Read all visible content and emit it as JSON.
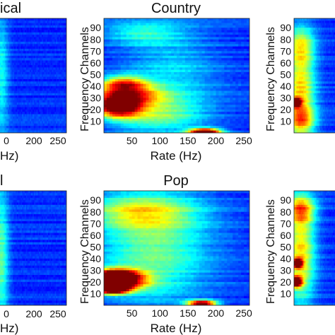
{
  "figure": {
    "panels": [
      {
        "id": "classical",
        "title": "ical",
        "xlabel": "Hz)",
        "ylabel": "",
        "x_ticks": [
          200,
          250
        ],
        "x_first_tick_text": "0",
        "y_ticks": [],
        "base_color": "#2f3aa6"
      },
      {
        "id": "country",
        "title": "Country",
        "xlabel": "Rate (Hz)",
        "ylabel": "Frequency Channels",
        "x_ticks": [
          50,
          100,
          150,
          200,
          250
        ],
        "y_ticks": [
          10,
          20,
          30,
          40,
          50,
          60,
          70,
          80,
          90
        ],
        "base_color": "#2e39a8"
      },
      {
        "id": "right-top",
        "title": "",
        "xlabel": "",
        "ylabel": "Frequency Channels",
        "x_ticks": [],
        "y_ticks": [
          10,
          20,
          30,
          40,
          50,
          60,
          70,
          80,
          90
        ],
        "base_color": "#2e39a8"
      },
      {
        "id": "bottom-left",
        "title": "l",
        "xlabel": "Hz)",
        "ylabel": "",
        "x_ticks": [
          200,
          250
        ],
        "x_first_tick_text": "0",
        "y_ticks": [],
        "base_color": "#2f3aa6"
      },
      {
        "id": "pop",
        "title": "Pop",
        "xlabel": "Rate (Hz)",
        "ylabel": "Frequency Channels",
        "x_ticks": [
          50,
          100,
          150,
          200,
          250
        ],
        "y_ticks": [
          10,
          20,
          30,
          40,
          50,
          60,
          70,
          80,
          90
        ],
        "base_color": "#2e39a8"
      },
      {
        "id": "right-bottom",
        "title": "",
        "xlabel": "",
        "ylabel": "Frequency Channels",
        "x_ticks": [],
        "y_ticks": [
          10,
          20,
          30,
          40,
          50,
          60,
          70,
          80,
          90
        ],
        "base_color": "#2e39a8"
      }
    ]
  },
  "chart_data": [
    {
      "type": "heatmap",
      "title": "ical",
      "xlabel": "Hz)",
      "ylabel": "",
      "xlim": [
        0,
        260
      ],
      "ylim": [
        0,
        98
      ],
      "x_ticks": [
        200,
        250
      ],
      "blobs": [
        {
          "x": 10,
          "y": 50,
          "sx": 20,
          "sy": 40,
          "v": 0.22
        }
      ]
    },
    {
      "type": "heatmap",
      "title": "Country",
      "xlabel": "Rate (Hz)",
      "ylabel": "Frequency Channels",
      "xlim": [
        0,
        260
      ],
      "ylim": [
        0,
        98
      ],
      "x_ticks": [
        50,
        100,
        150,
        200,
        250
      ],
      "y_ticks": [
        10,
        20,
        30,
        40,
        50,
        60,
        70,
        80,
        90
      ],
      "blobs": [
        {
          "x": 25,
          "y": 22,
          "sx": 28,
          "sy": 6,
          "v": 0.85
        },
        {
          "x": 40,
          "y": 32,
          "sx": 45,
          "sy": 6,
          "v": 0.55
        },
        {
          "x": 35,
          "y": 42,
          "sx": 30,
          "sy": 5,
          "v": 0.55
        },
        {
          "x": 90,
          "y": 15,
          "sx": 60,
          "sy": 10,
          "v": 0.3
        },
        {
          "x": 120,
          "y": 50,
          "sx": 60,
          "sy": 25,
          "v": 0.18
        },
        {
          "x": 70,
          "y": 85,
          "sx": 50,
          "sy": 7,
          "v": 0.22
        },
        {
          "x": 180,
          "y": 1,
          "sx": 20,
          "sy": 2,
          "v": 1.0
        }
      ]
    },
    {
      "type": "heatmap",
      "title": "",
      "xlabel": "",
      "ylabel": "Frequency Channels",
      "xlim": [
        0,
        260
      ],
      "ylim": [
        0,
        98
      ],
      "y_ticks": [
        10,
        20,
        30,
        40,
        50,
        60,
        70,
        80,
        90
      ],
      "blobs": [
        {
          "x": 10,
          "y": 26,
          "sx": 20,
          "sy": 2.5,
          "v": 1.0
        },
        {
          "x": 40,
          "y": 35,
          "sx": 60,
          "sy": 25,
          "v": 0.5
        },
        {
          "x": 40,
          "y": 75,
          "sx": 60,
          "sy": 12,
          "v": 0.35
        },
        {
          "x": 40,
          "y": 10,
          "sx": 60,
          "sy": 8,
          "v": 0.35
        }
      ]
    },
    {
      "type": "heatmap",
      "title": "l",
      "xlabel": "Hz)",
      "ylabel": "",
      "xlim": [
        0,
        260
      ],
      "ylim": [
        0,
        98
      ],
      "x_ticks": [
        200,
        250
      ],
      "blobs": [
        {
          "x": 10,
          "y": 40,
          "sx": 20,
          "sy": 45,
          "v": 0.3
        }
      ]
    },
    {
      "type": "heatmap",
      "title": "Pop",
      "xlabel": "Rate (Hz)",
      "ylabel": "Frequency Channels",
      "xlim": [
        0,
        260
      ],
      "ylim": [
        0,
        98
      ],
      "x_ticks": [
        50,
        100,
        150,
        200,
        250
      ],
      "y_ticks": [
        10,
        20,
        30,
        40,
        50,
        60,
        70,
        80,
        90
      ],
      "blobs": [
        {
          "x": 15,
          "y": 14,
          "sx": 20,
          "sy": 3,
          "v": 1.0
        },
        {
          "x": 25,
          "y": 20,
          "sx": 35,
          "sy": 5,
          "v": 0.75
        },
        {
          "x": 20,
          "y": 26,
          "sx": 30,
          "sy": 4,
          "v": 0.75
        },
        {
          "x": 90,
          "y": 50,
          "sx": 70,
          "sy": 35,
          "v": 0.32
        },
        {
          "x": 60,
          "y": 80,
          "sx": 70,
          "sy": 10,
          "v": 0.3
        },
        {
          "x": 175,
          "y": 1.5,
          "sx": 18,
          "sy": 2,
          "v": 0.9
        }
      ]
    },
    {
      "type": "heatmap",
      "title": "",
      "xlabel": "",
      "ylabel": "Frequency Channels",
      "xlim": [
        0,
        260
      ],
      "ylim": [
        0,
        98
      ],
      "y_ticks": [
        10,
        20,
        30,
        40,
        50,
        60,
        70,
        80,
        90
      ],
      "blobs": [
        {
          "x": 10,
          "y": 20,
          "sx": 25,
          "sy": 3,
          "v": 1.0
        },
        {
          "x": 20,
          "y": 36,
          "sx": 20,
          "sy": 2.5,
          "v": 0.95
        },
        {
          "x": 40,
          "y": 45,
          "sx": 60,
          "sy": 30,
          "v": 0.5
        },
        {
          "x": 40,
          "y": 82,
          "sx": 60,
          "sy": 8,
          "v": 0.45
        }
      ]
    }
  ]
}
